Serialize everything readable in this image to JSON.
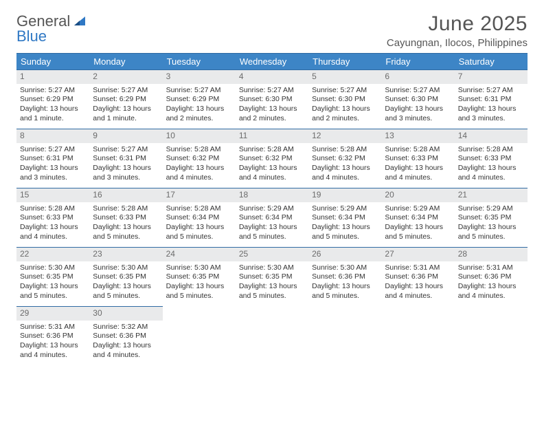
{
  "brand": {
    "word1": "General",
    "word2": "Blue",
    "accent_color": "#2f78c4",
    "text_color": "#555555"
  },
  "title": "June 2025",
  "subtitle": "Cayungnan, Ilocos, Philippines",
  "header_bg": "#3d85c6",
  "daynum_bg": "#e9eaeb",
  "rule_color": "#2f6aa3",
  "weekdays": [
    "Sunday",
    "Monday",
    "Tuesday",
    "Wednesday",
    "Thursday",
    "Friday",
    "Saturday"
  ],
  "weeks": [
    [
      {
        "n": "1",
        "sr": "Sunrise: 5:27 AM",
        "ss": "Sunset: 6:29 PM",
        "dl": "Daylight: 13 hours and 1 minute."
      },
      {
        "n": "2",
        "sr": "Sunrise: 5:27 AM",
        "ss": "Sunset: 6:29 PM",
        "dl": "Daylight: 13 hours and 1 minute."
      },
      {
        "n": "3",
        "sr": "Sunrise: 5:27 AM",
        "ss": "Sunset: 6:29 PM",
        "dl": "Daylight: 13 hours and 2 minutes."
      },
      {
        "n": "4",
        "sr": "Sunrise: 5:27 AM",
        "ss": "Sunset: 6:30 PM",
        "dl": "Daylight: 13 hours and 2 minutes."
      },
      {
        "n": "5",
        "sr": "Sunrise: 5:27 AM",
        "ss": "Sunset: 6:30 PM",
        "dl": "Daylight: 13 hours and 2 minutes."
      },
      {
        "n": "6",
        "sr": "Sunrise: 5:27 AM",
        "ss": "Sunset: 6:30 PM",
        "dl": "Daylight: 13 hours and 3 minutes."
      },
      {
        "n": "7",
        "sr": "Sunrise: 5:27 AM",
        "ss": "Sunset: 6:31 PM",
        "dl": "Daylight: 13 hours and 3 minutes."
      }
    ],
    [
      {
        "n": "8",
        "sr": "Sunrise: 5:27 AM",
        "ss": "Sunset: 6:31 PM",
        "dl": "Daylight: 13 hours and 3 minutes."
      },
      {
        "n": "9",
        "sr": "Sunrise: 5:27 AM",
        "ss": "Sunset: 6:31 PM",
        "dl": "Daylight: 13 hours and 3 minutes."
      },
      {
        "n": "10",
        "sr": "Sunrise: 5:28 AM",
        "ss": "Sunset: 6:32 PM",
        "dl": "Daylight: 13 hours and 4 minutes."
      },
      {
        "n": "11",
        "sr": "Sunrise: 5:28 AM",
        "ss": "Sunset: 6:32 PM",
        "dl": "Daylight: 13 hours and 4 minutes."
      },
      {
        "n": "12",
        "sr": "Sunrise: 5:28 AM",
        "ss": "Sunset: 6:32 PM",
        "dl": "Daylight: 13 hours and 4 minutes."
      },
      {
        "n": "13",
        "sr": "Sunrise: 5:28 AM",
        "ss": "Sunset: 6:33 PM",
        "dl": "Daylight: 13 hours and 4 minutes."
      },
      {
        "n": "14",
        "sr": "Sunrise: 5:28 AM",
        "ss": "Sunset: 6:33 PM",
        "dl": "Daylight: 13 hours and 4 minutes."
      }
    ],
    [
      {
        "n": "15",
        "sr": "Sunrise: 5:28 AM",
        "ss": "Sunset: 6:33 PM",
        "dl": "Daylight: 13 hours and 4 minutes."
      },
      {
        "n": "16",
        "sr": "Sunrise: 5:28 AM",
        "ss": "Sunset: 6:33 PM",
        "dl": "Daylight: 13 hours and 5 minutes."
      },
      {
        "n": "17",
        "sr": "Sunrise: 5:28 AM",
        "ss": "Sunset: 6:34 PM",
        "dl": "Daylight: 13 hours and 5 minutes."
      },
      {
        "n": "18",
        "sr": "Sunrise: 5:29 AM",
        "ss": "Sunset: 6:34 PM",
        "dl": "Daylight: 13 hours and 5 minutes."
      },
      {
        "n": "19",
        "sr": "Sunrise: 5:29 AM",
        "ss": "Sunset: 6:34 PM",
        "dl": "Daylight: 13 hours and 5 minutes."
      },
      {
        "n": "20",
        "sr": "Sunrise: 5:29 AM",
        "ss": "Sunset: 6:34 PM",
        "dl": "Daylight: 13 hours and 5 minutes."
      },
      {
        "n": "21",
        "sr": "Sunrise: 5:29 AM",
        "ss": "Sunset: 6:35 PM",
        "dl": "Daylight: 13 hours and 5 minutes."
      }
    ],
    [
      {
        "n": "22",
        "sr": "Sunrise: 5:30 AM",
        "ss": "Sunset: 6:35 PM",
        "dl": "Daylight: 13 hours and 5 minutes."
      },
      {
        "n": "23",
        "sr": "Sunrise: 5:30 AM",
        "ss": "Sunset: 6:35 PM",
        "dl": "Daylight: 13 hours and 5 minutes."
      },
      {
        "n": "24",
        "sr": "Sunrise: 5:30 AM",
        "ss": "Sunset: 6:35 PM",
        "dl": "Daylight: 13 hours and 5 minutes."
      },
      {
        "n": "25",
        "sr": "Sunrise: 5:30 AM",
        "ss": "Sunset: 6:35 PM",
        "dl": "Daylight: 13 hours and 5 minutes."
      },
      {
        "n": "26",
        "sr": "Sunrise: 5:30 AM",
        "ss": "Sunset: 6:36 PM",
        "dl": "Daylight: 13 hours and 5 minutes."
      },
      {
        "n": "27",
        "sr": "Sunrise: 5:31 AM",
        "ss": "Sunset: 6:36 PM",
        "dl": "Daylight: 13 hours and 4 minutes."
      },
      {
        "n": "28",
        "sr": "Sunrise: 5:31 AM",
        "ss": "Sunset: 6:36 PM",
        "dl": "Daylight: 13 hours and 4 minutes."
      }
    ],
    [
      {
        "n": "29",
        "sr": "Sunrise: 5:31 AM",
        "ss": "Sunset: 6:36 PM",
        "dl": "Daylight: 13 hours and 4 minutes."
      },
      {
        "n": "30",
        "sr": "Sunrise: 5:32 AM",
        "ss": "Sunset: 6:36 PM",
        "dl": "Daylight: 13 hours and 4 minutes."
      },
      null,
      null,
      null,
      null,
      null
    ]
  ]
}
